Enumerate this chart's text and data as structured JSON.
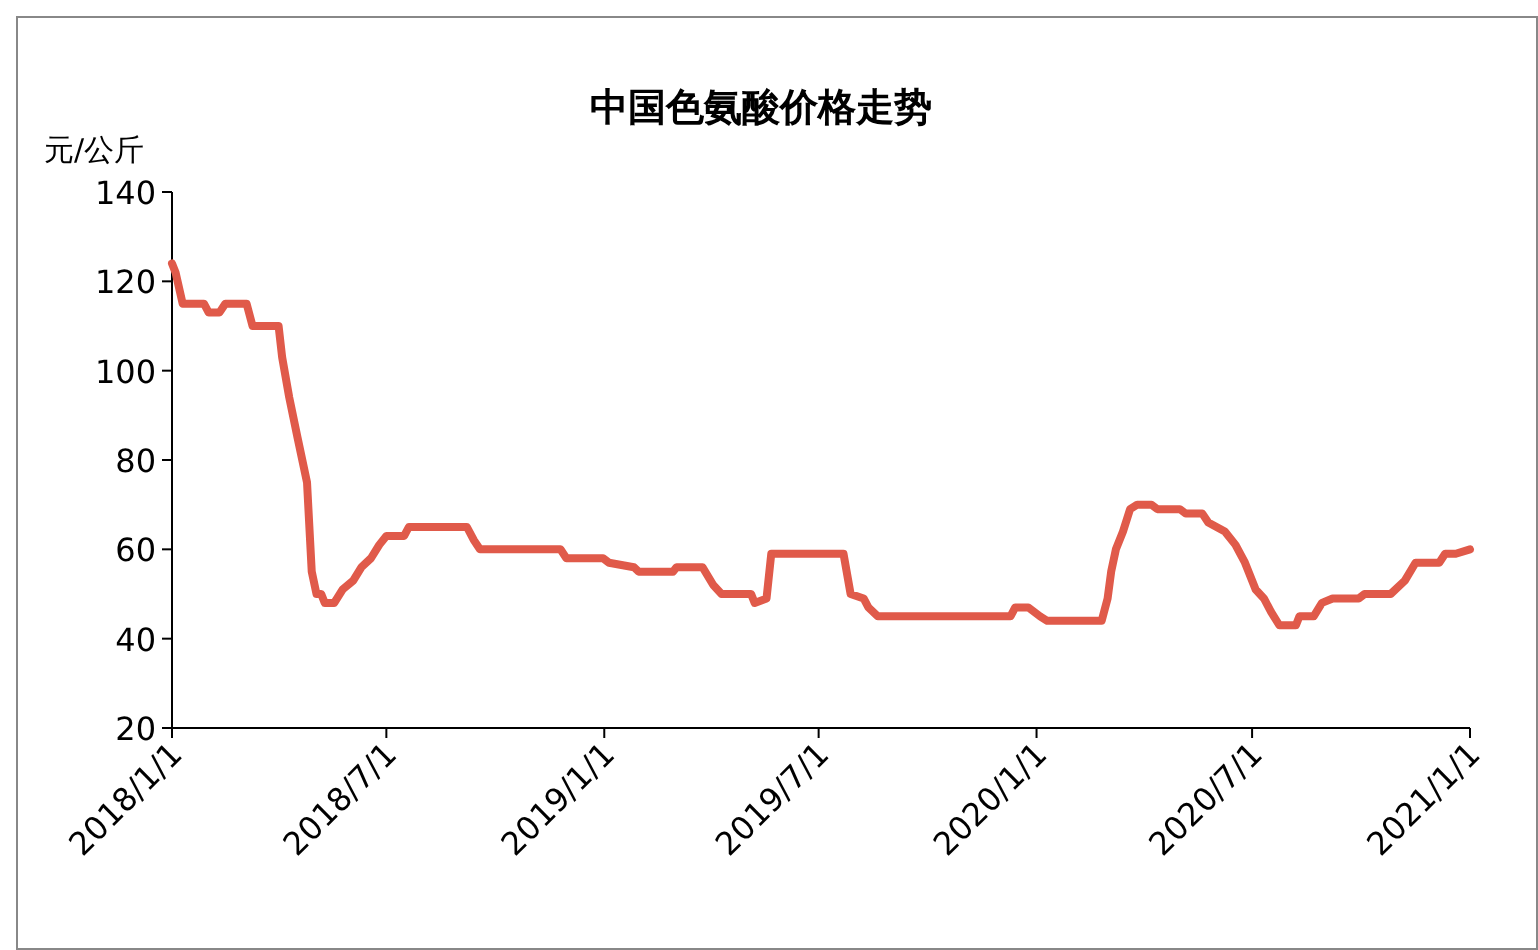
{
  "chart_data": {
    "type": "line",
    "title": "中国色氨酸价格走势",
    "ylabel": "元/公斤",
    "x": [
      "2018-01-01",
      "2018-01-04",
      "2018-01-10",
      "2018-01-28",
      "2018-02-01",
      "2018-02-10",
      "2018-02-15",
      "2018-03-05",
      "2018-03-10",
      "2018-04-01",
      "2018-04-04",
      "2018-04-10",
      "2018-04-17",
      "2018-04-25",
      "2018-04-29",
      "2018-05-03",
      "2018-05-07",
      "2018-05-10",
      "2018-05-18",
      "2018-05-25",
      "2018-06-03",
      "2018-06-10",
      "2018-06-18",
      "2018-06-25",
      "2018-07-01",
      "2018-07-16",
      "2018-07-20",
      "2018-09-07",
      "2018-09-13",
      "2018-09-18",
      "2018-11-25",
      "2018-11-30",
      "2018-12-31",
      "2019-01-05",
      "2019-01-26",
      "2019-01-30",
      "2019-02-28",
      "2019-03-03",
      "2019-03-25",
      "2019-04-03",
      "2019-04-10",
      "2019-05-05",
      "2019-05-08",
      "2019-05-18",
      "2019-05-22",
      "2019-07-22",
      "2019-07-28",
      "2019-08-08",
      "2019-08-12",
      "2019-08-20",
      "2019-12-10",
      "2019-12-14",
      "2019-12-25",
      "2020-01-04",
      "2020-01-10",
      "2020-02-25",
      "2020-03-01",
      "2020-03-04",
      "2020-03-08",
      "2020-03-14",
      "2020-03-20",
      "2020-03-26",
      "2020-04-07",
      "2020-04-12",
      "2020-05-01",
      "2020-05-06",
      "2020-05-20",
      "2020-05-25",
      "2020-06-08",
      "2020-06-17",
      "2020-06-25",
      "2020-07-04",
      "2020-07-11",
      "2020-07-17",
      "2020-07-24",
      "2020-08-07",
      "2020-08-10",
      "2020-08-22",
      "2020-08-29",
      "2020-09-07",
      "2020-09-29",
      "2020-10-04",
      "2020-10-26",
      "2020-11-07",
      "2020-11-16",
      "2020-12-06",
      "2020-12-11",
      "2020-12-20",
      "2021-01-01"
    ],
    "series": [
      {
        "color": "#e05a4a",
        "values": [
          124,
          122,
          115,
          115,
          113,
          113,
          115,
          115,
          110,
          110,
          103,
          94,
          85,
          75,
          55,
          50,
          50,
          48,
          48,
          51,
          53,
          56,
          58,
          61,
          63,
          63,
          65,
          65,
          62,
          60,
          60,
          58,
          58,
          57,
          56,
          55,
          55,
          56,
          56,
          52,
          50,
          50,
          48,
          49,
          59,
          59,
          50,
          49,
          47,
          45,
          45,
          47,
          47,
          45,
          44,
          44,
          49,
          55,
          60,
          64,
          69,
          70,
          70,
          69,
          69,
          68,
          68,
          66,
          64,
          61,
          57,
          51,
          49,
          46,
          43,
          43,
          45,
          45,
          48,
          49,
          49,
          50,
          50,
          53,
          57,
          57,
          59,
          59,
          60
        ]
      }
    ],
    "xlim": [
      "2018-01-01",
      "2021-01-01"
    ],
    "xticks": [
      {
        "value": "2018-01-01",
        "label": "2018/1/1"
      },
      {
        "value": "2018-07-01",
        "label": "2018/7/1"
      },
      {
        "value": "2019-01-01",
        "label": "2019/1/1"
      },
      {
        "value": "2019-07-01",
        "label": "2019/7/1"
      },
      {
        "value": "2020-01-01",
        "label": "2020/1/1"
      },
      {
        "value": "2020-07-01",
        "label": "2020/7/1"
      },
      {
        "value": "2021-01-01",
        "label": "2021/1/1"
      }
    ],
    "ylim": [
      20,
      140
    ],
    "yticks": [
      20,
      40,
      60,
      80,
      100,
      120,
      140
    ],
    "grid": false,
    "marker": "none",
    "line_style": "solid"
  }
}
